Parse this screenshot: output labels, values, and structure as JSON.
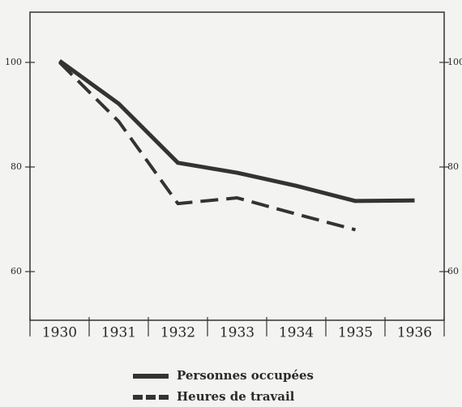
{
  "chart_data": {
    "type": "line",
    "categories": [
      "1930",
      "1931",
      "1932",
      "1933",
      "1934",
      "1935",
      "1936"
    ],
    "series": [
      {
        "name": "Personnes occupées",
        "color": "#333333",
        "dash": "solid",
        "values": [
          100.3,
          92.1,
          80.8,
          78.9,
          76.4,
          73.5,
          73.6
        ]
      },
      {
        "name": "Heures de travail",
        "color": "#333333",
        "dash": "dashed",
        "values": [
          100,
          88.7,
          73,
          74.1,
          71,
          68,
          null
        ]
      }
    ],
    "ylim": [
      50.7,
      109.6
    ],
    "yticks": [
      60,
      80,
      100
    ],
    "grid": false
  }
}
